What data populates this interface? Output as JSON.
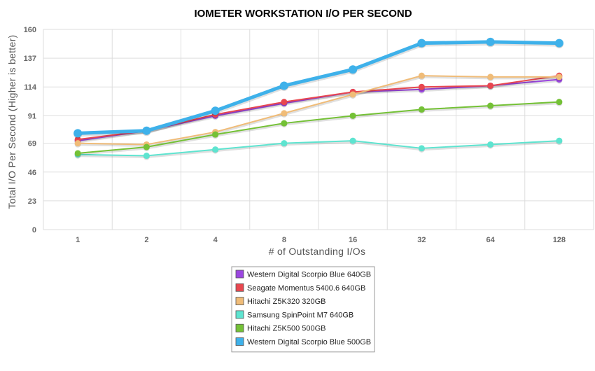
{
  "chart_data": {
    "type": "line",
    "title": "IOMETER WORKSTATION I/O PER SECOND",
    "xlabel": "# of Outstanding I/Os",
    "ylabel": "Total I/O Per Second (Higher is better)",
    "categories": [
      "1",
      "2",
      "4",
      "8",
      "16",
      "32",
      "64",
      "128"
    ],
    "ylim": [
      0,
      160
    ],
    "yticks": [
      0,
      23,
      46,
      69,
      91,
      114,
      137,
      160
    ],
    "grid": true,
    "legend_position": "bottom-center",
    "series": [
      {
        "name": "Western Digital Scorpio Blue 640GB",
        "color": "#9b46e0",
        "values": [
          71,
          79,
          91,
          101,
          110,
          112,
          115,
          120
        ]
      },
      {
        "name": "Seagate Momentus 5400.6 640GB",
        "color": "#e8474f",
        "values": [
          72,
          79,
          92,
          102,
          110,
          114,
          115,
          123
        ]
      },
      {
        "name": "Hitachi Z5K320 320GB",
        "color": "#f0bc78",
        "values": [
          69,
          68,
          78,
          93,
          108,
          123,
          122,
          122
        ]
      },
      {
        "name": "Samsung SpinPoint M7 640GB",
        "color": "#5ee4d0",
        "values": [
          60,
          59,
          64,
          69,
          71,
          65,
          68,
          71
        ]
      },
      {
        "name": "Hitachi Z5K500 500GB",
        "color": "#74c136",
        "values": [
          61,
          66,
          76,
          85,
          91,
          96,
          99,
          102
        ]
      },
      {
        "name": "Western Digital Scorpio Blue 500GB",
        "color": "#3eb1ea",
        "values": [
          77,
          79,
          95,
          115,
          128,
          149,
          150,
          149
        ],
        "highlight": true
      }
    ]
  }
}
